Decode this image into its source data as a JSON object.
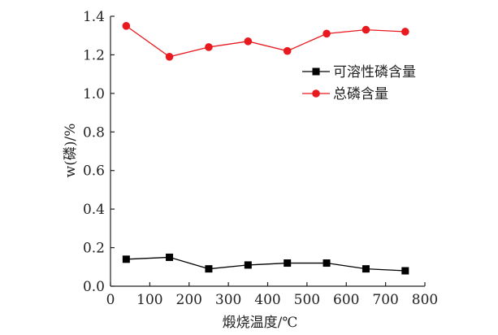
{
  "chart_data": {
    "type": "line",
    "xlabel": "煅烧温度/℃",
    "ylabel": "w(磷)/%",
    "xlim": [
      0,
      800
    ],
    "ylim": [
      0.0,
      1.4
    ],
    "xticks": [
      "0",
      "100",
      "200",
      "300",
      "400",
      "500",
      "600",
      "700",
      "800"
    ],
    "yticks": [
      "0.0",
      "0.2",
      "0.4",
      "0.6",
      "0.8",
      "1.0",
      "1.2",
      "1.4"
    ],
    "grid": false,
    "legend_position": "top-right",
    "x": [
      40,
      150,
      250,
      350,
      450,
      550,
      650,
      750
    ],
    "series": [
      {
        "name": "可溶性磷含量",
        "color": "#000000",
        "marker": "square",
        "values": [
          0.14,
          0.15,
          0.09,
          0.11,
          0.12,
          0.12,
          0.09,
          0.08
        ]
      },
      {
        "name": "总磷含量",
        "color": "#e8191f",
        "marker": "circle",
        "values": [
          1.35,
          1.19,
          1.24,
          1.27,
          1.22,
          1.31,
          1.33,
          1.32
        ]
      }
    ]
  }
}
